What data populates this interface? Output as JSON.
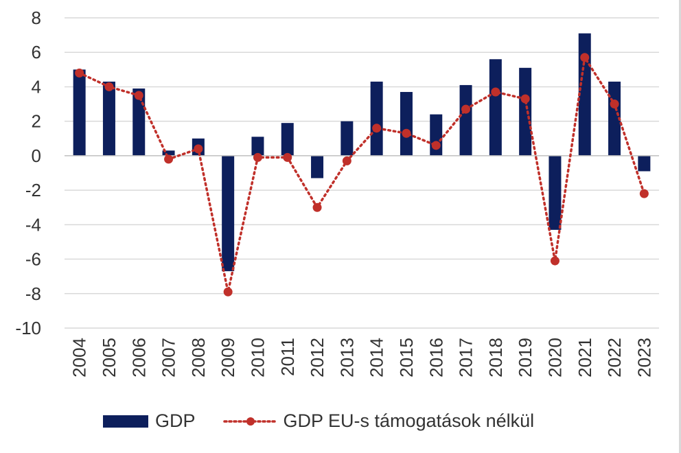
{
  "chart_data": {
    "type": "bar+line",
    "categories": [
      "2004",
      "2005",
      "2006",
      "2007",
      "2008",
      "2009",
      "2010",
      "2011",
      "2012",
      "2013",
      "2014",
      "2015",
      "2016",
      "2017",
      "2018",
      "2019",
      "2020",
      "2021",
      "2022",
      "2023"
    ],
    "series": [
      {
        "name": "GDP",
        "type": "bar",
        "color": "#0d1f5c",
        "values": [
          5.0,
          4.3,
          3.9,
          0.3,
          1.0,
          -6.7,
          1.1,
          1.9,
          -1.3,
          2.0,
          4.3,
          3.7,
          2.4,
          4.1,
          5.6,
          5.1,
          -4.3,
          7.1,
          4.3,
          -0.9
        ]
      },
      {
        "name": "GDP EU-s támogatások nélkül",
        "type": "line",
        "style": "dotted",
        "marker": "circle",
        "color": "#c0302a",
        "values": [
          4.8,
          4.0,
          3.5,
          -0.2,
          0.4,
          -7.9,
          -0.1,
          -0.1,
          -3.0,
          -0.3,
          1.6,
          1.3,
          0.6,
          2.7,
          3.7,
          3.3,
          -6.1,
          5.7,
          3.0,
          -2.2
        ]
      }
    ],
    "ylim": [
      -10,
      8
    ],
    "yticks": [
      -10,
      -8,
      -6,
      -4,
      -2,
      0,
      2,
      4,
      6,
      8
    ],
    "grid": true,
    "legend_position": "bottom",
    "title": "",
    "xlabel": "",
    "ylabel": ""
  },
  "legend": {
    "gdp_label": "GDP",
    "no_eu_label": "GDP EU-s támogatások nélkül"
  }
}
